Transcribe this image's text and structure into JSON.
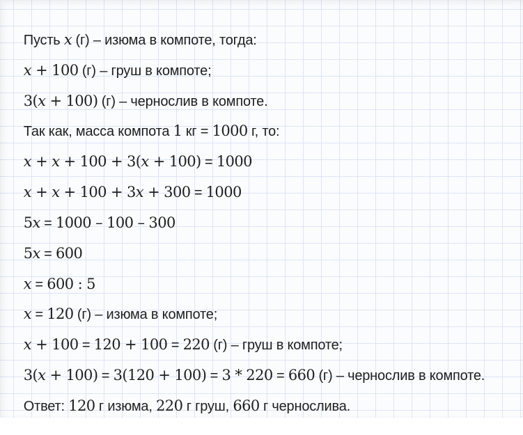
{
  "colors": {
    "paper_background": "#fbfcfe",
    "grid_line": "#dce5f6",
    "text": "#1e1e1e"
  },
  "solution": {
    "lines": [
      {
        "segments": [
          {
            "v": "Пусть "
          },
          {
            "v": "x"
          },
          {
            "v": " (г) – изюма в компоте, тогда:"
          }
        ]
      },
      {
        "segments": [
          {
            "v": "x"
          },
          {
            "v": " + 100"
          },
          {
            "v": " (г) – груш в компоте;"
          }
        ]
      },
      {
        "segments": [
          {
            "v": "3("
          },
          {
            "v": "x"
          },
          {
            "v": " + 100)"
          },
          {
            "v": " (г) – чернослив в компоте."
          }
        ]
      },
      {
        "segments": [
          {
            "v": "Так как, масса компота "
          },
          {
            "v": "1"
          },
          {
            "v": " кг = "
          },
          {
            "v": "1000"
          },
          {
            "v": " г, то:"
          }
        ]
      },
      {
        "segments": [
          {
            "v": "x"
          },
          {
            "v": " + "
          },
          {
            "v": "x"
          },
          {
            "v": " + 100 + 3("
          },
          {
            "v": "x"
          },
          {
            "v": " + 100)"
          },
          {
            "v": " = "
          },
          {
            "v": "1000"
          }
        ]
      },
      {
        "segments": [
          {
            "v": "x"
          },
          {
            "v": " + "
          },
          {
            "v": "x"
          },
          {
            "v": " + 100 + 3"
          },
          {
            "v": "x"
          },
          {
            "v": " + 300"
          },
          {
            "v": " = "
          },
          {
            "v": "1000"
          }
        ]
      },
      {
        "segments": [
          {
            "v": "5"
          },
          {
            "v": "x"
          },
          {
            "v": " = "
          },
          {
            "v": "1000 – 100 – 300"
          }
        ]
      },
      {
        "segments": [
          {
            "v": "5"
          },
          {
            "v": "x"
          },
          {
            "v": " = "
          },
          {
            "v": "600"
          }
        ]
      },
      {
        "segments": [
          {
            "v": "x"
          },
          {
            "v": " = "
          },
          {
            "v": "600 : 5"
          }
        ]
      },
      {
        "segments": [
          {
            "v": "x"
          },
          {
            "v": " = "
          },
          {
            "v": "120"
          },
          {
            "v": " (г) – изюма в компоте;"
          }
        ]
      },
      {
        "segments": [
          {
            "v": "x"
          },
          {
            "v": " + 100"
          },
          {
            "v": " = "
          },
          {
            "v": "120 + 100"
          },
          {
            "v": " = "
          },
          {
            "v": "220"
          },
          {
            "v": " (г) – груш в компоте;"
          }
        ]
      },
      {
        "segments": [
          {
            "v": "3("
          },
          {
            "v": "x"
          },
          {
            "v": " + 100)"
          },
          {
            "v": " = "
          },
          {
            "v": "3(120 + 100)"
          },
          {
            "v": " = "
          },
          {
            "v": "3 * 220"
          },
          {
            "v": " = "
          },
          {
            "v": "660"
          },
          {
            "v": " (г) – чернослив в компоте."
          }
        ]
      },
      {
        "segments": [
          {
            "v": "Ответ: "
          },
          {
            "v": "120"
          },
          {
            "v": " г изюма, "
          },
          {
            "v": "220"
          },
          {
            "v": " г груш, "
          },
          {
            "v": "660"
          },
          {
            "v": " г чернослива."
          }
        ]
      }
    ]
  }
}
